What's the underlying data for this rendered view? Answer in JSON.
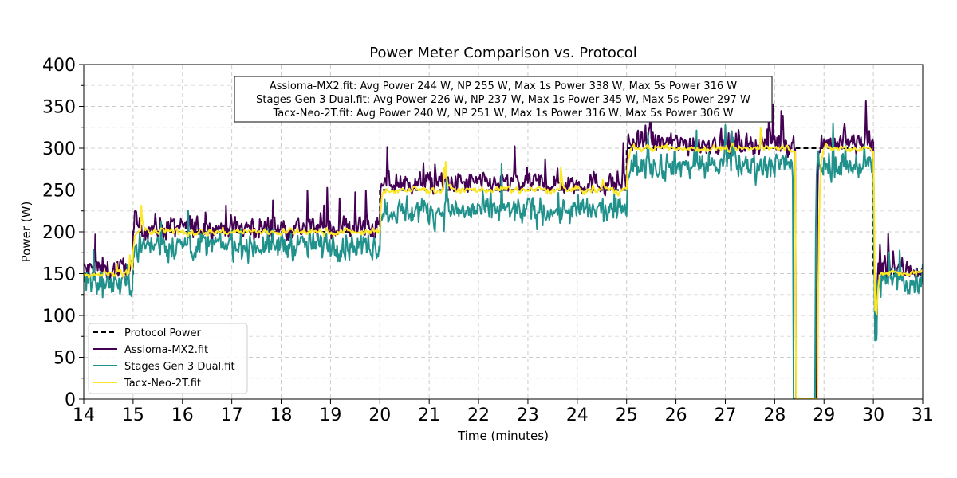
{
  "chart_data": {
    "type": "line",
    "title": "Power Meter Comparison vs. Protocol",
    "xlabel": "Time (minutes)",
    "ylabel": "Power (W)",
    "xlim": [
      14,
      31
    ],
    "ylim": [
      0,
      400
    ],
    "xticks": [
      "14",
      "15",
      "16",
      "17",
      "18",
      "19",
      "20",
      "21",
      "22",
      "23",
      "24",
      "25",
      "26",
      "27",
      "28",
      "29",
      "30",
      "31"
    ],
    "yticks": [
      "0",
      "50",
      "100",
      "150",
      "200",
      "250",
      "300",
      "350",
      "400"
    ],
    "grid": true,
    "legend_position": "lower-left",
    "protocol": {
      "name": "Protocol Power",
      "color": "#000000",
      "style": "dashed",
      "segments": [
        {
          "start": 14,
          "end": 15,
          "power": 150
        },
        {
          "start": 15,
          "end": 20,
          "power": 200
        },
        {
          "start": 20,
          "end": 25,
          "power": 250
        },
        {
          "start": 25,
          "end": 30,
          "power": 300
        },
        {
          "start": 30,
          "end": 31,
          "power": 150
        }
      ]
    },
    "series": [
      {
        "name": "Assioma-MX2.fit",
        "color": "#440154",
        "offset_by_level": {
          "150": 5,
          "200": 5,
          "250": 8,
          "300": 6
        },
        "noise": 9,
        "spikes": 22,
        "dropout": {
          "start": 28.42,
          "end": 28.85
        },
        "min_dip_at_30": 75
      },
      {
        "name": "Stages Gen 3 Dual.fit",
        "color": "#21918c",
        "offset_by_level": {
          "150": -10,
          "200": -16,
          "250": -25,
          "300": -20
        },
        "noise": 11,
        "spikes": 18,
        "dropout": {
          "start": 28.38,
          "end": 28.82
        },
        "min_dip_at_30": 65
      },
      {
        "name": "Tacx-Neo-2T.fit",
        "color": "#fde725",
        "offset_by_level": {
          "150": 0,
          "200": 0,
          "250": 0,
          "300": 0
        },
        "noise": 4,
        "spikes": 6,
        "dropout": {
          "start": 28.42,
          "end": 28.88
        },
        "min_dip_at_30": 100
      }
    ],
    "annotation": {
      "lines": [
        "Assioma-MX2.fit: Avg Power 244 W, NP 255 W, Max 1s Power 338 W, Max 5s Power 316 W",
        "Stages Gen 3 Dual.fit: Avg Power 226 W, NP 237 W, Max 1s Power 345 W, Max 5s Power 297 W",
        "Tacx-Neo-2T.fit: Avg Power 240 W, NP 251 W, Max 1s Power 316 W, Max 5s Power 306 W"
      ]
    },
    "stats": [
      {
        "device": "Assioma-MX2.fit",
        "avg_power_w": 244,
        "np_w": 255,
        "max_1s_w": 338,
        "max_5s_w": 316
      },
      {
        "device": "Stages Gen 3 Dual.fit",
        "avg_power_w": 226,
        "np_w": 237,
        "max_1s_w": 345,
        "max_5s_w": 297
      },
      {
        "device": "Tacx-Neo-2T.fit",
        "avg_power_w": 240,
        "np_w": 251,
        "max_1s_w": 316,
        "max_5s_w": 306
      }
    ]
  }
}
